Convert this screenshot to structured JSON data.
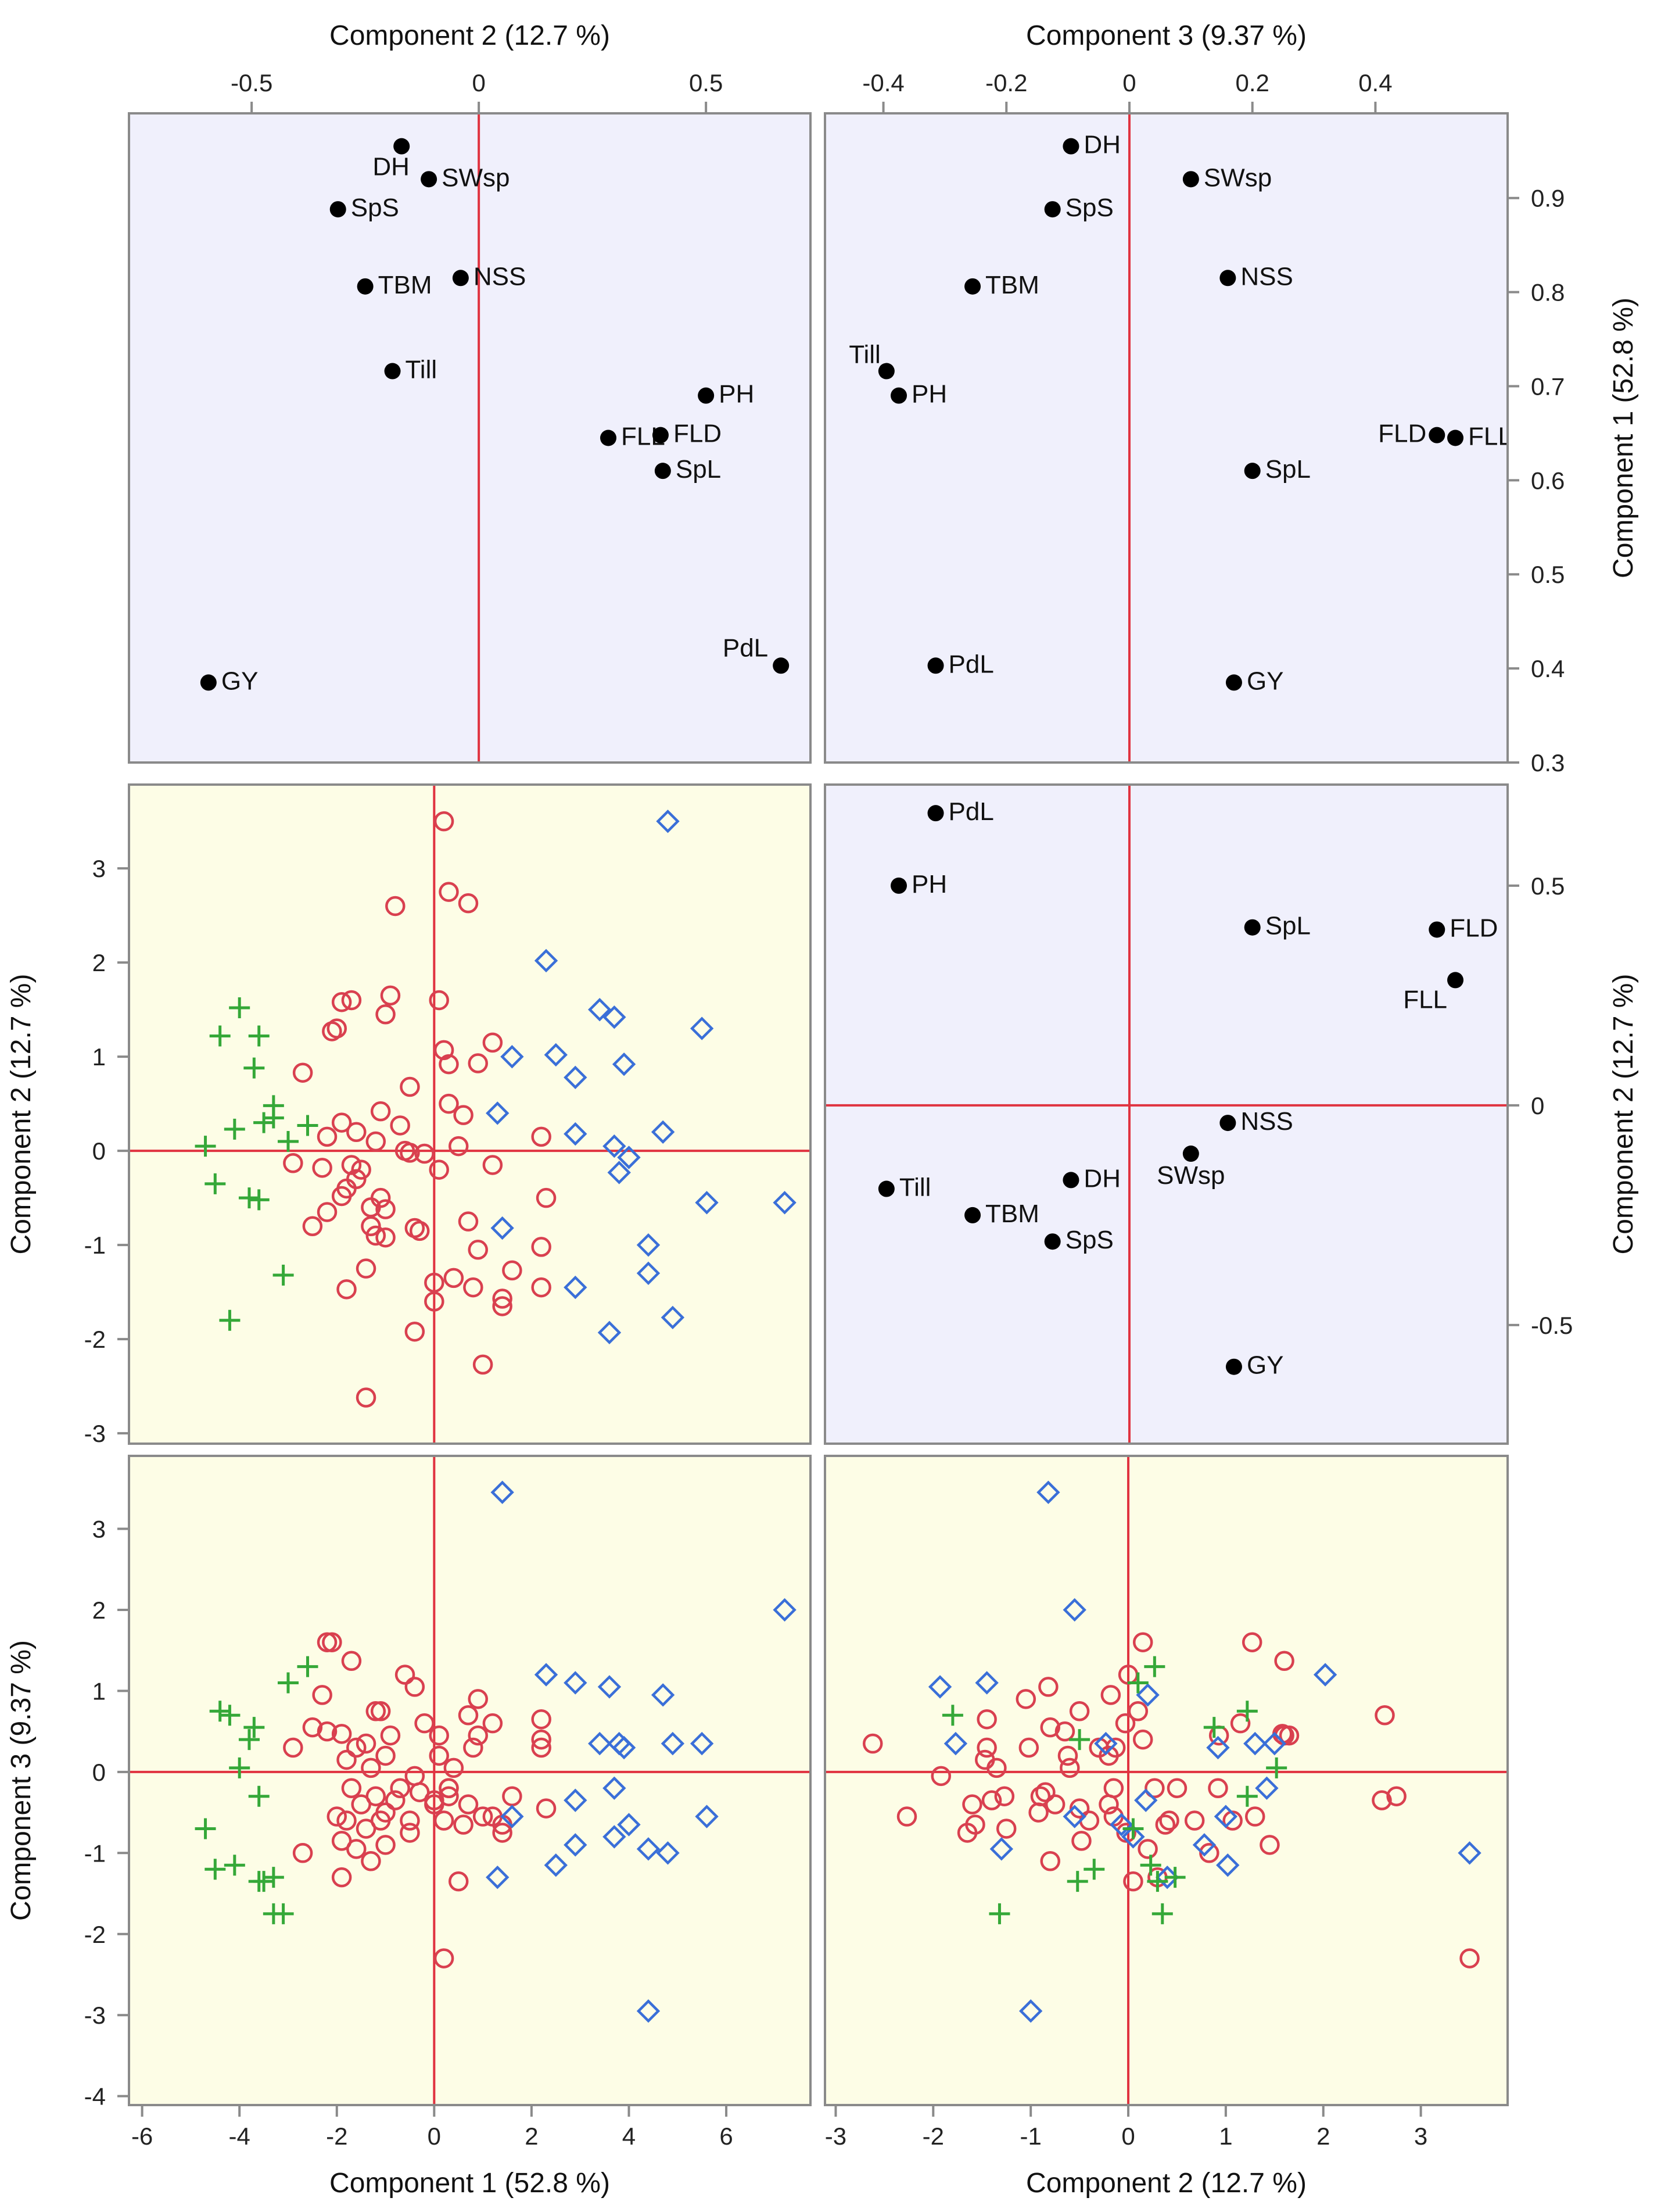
{
  "chart_data": {
    "type": "scatter-matrix",
    "title": "",
    "colors": {
      "loadings_bg": "#f0f0fc",
      "scores_bg": "#fdfde6",
      "ref_line": "#e03340",
      "group_circle": "#d9404f",
      "group_diamond": "#3a6fd8",
      "group_plus": "#35a838",
      "frame": "#8a8a8a"
    },
    "axes": {
      "comp1": {
        "label": "Component 1  (52.8 %)",
        "loading_range": [
          0.3,
          0.99
        ],
        "loading_ticks": [
          {
            "v": 0.3,
            "t": "0.3"
          },
          {
            "v": 0.4,
            "t": "0.4"
          },
          {
            "v": 0.5,
            "t": "0.5"
          },
          {
            "v": 0.6,
            "t": "0.6"
          },
          {
            "v": 0.7,
            "t": "0.7"
          },
          {
            "v": 0.8,
            "t": "0.8"
          },
          {
            "v": 0.9,
            "t": "0.9"
          }
        ],
        "score_range": [
          -6.27,
          7.73
        ],
        "score_ticks": [
          {
            "v": -6,
            "t": "-6"
          },
          {
            "v": -4,
            "t": "-4"
          },
          {
            "v": -2,
            "t": "-2"
          },
          {
            "v": 0,
            "t": "0"
          },
          {
            "v": 2,
            "t": "2"
          },
          {
            "v": 4,
            "t": "4"
          },
          {
            "v": 6,
            "t": "6"
          }
        ]
      },
      "comp2": {
        "label": "Component 2  (12.7 %)",
        "loading_range": [
          -0.77,
          0.73
        ],
        "loading_ticks": [
          {
            "v": -0.5,
            "t": "-0.5"
          },
          {
            "v": 0,
            "t": "0"
          },
          {
            "v": 0.5,
            "t": "0.5"
          }
        ],
        "score_range": [
          -3.11,
          3.89
        ],
        "score_ticks": [
          {
            "v": -3,
            "t": "-3"
          },
          {
            "v": -2,
            "t": "-2"
          },
          {
            "v": -1,
            "t": "-1"
          },
          {
            "v": 0,
            "t": "0"
          },
          {
            "v": 1,
            "t": "1"
          },
          {
            "v": 2,
            "t": "2"
          },
          {
            "v": 3,
            "t": "3"
          }
        ]
      },
      "comp3": {
        "label": "Component 3  (9.37 %)",
        "loading_range": [
          -0.495,
          0.615
        ],
        "loading_ticks": [
          {
            "v": -0.4,
            "t": "-0.4"
          },
          {
            "v": -0.2,
            "t": "-0.2"
          },
          {
            "v": 0,
            "t": "0"
          },
          {
            "v": 0.2,
            "t": "0.2"
          },
          {
            "v": 0.4,
            "t": "0.4"
          }
        ],
        "score_range": [
          -4.11,
          3.9
        ],
        "score_ticks": [
          {
            "v": -4,
            "t": "-4"
          },
          {
            "v": -3,
            "t": "-3"
          },
          {
            "v": -2,
            "t": "-2"
          },
          {
            "v": -1,
            "t": "-1"
          },
          {
            "v": 0,
            "t": "0"
          },
          {
            "v": 1,
            "t": "1"
          },
          {
            "v": 2,
            "t": "2"
          },
          {
            "v": 3,
            "t": "3"
          }
        ]
      }
    },
    "loadings": [
      {
        "var": "DH",
        "c1": 0.955,
        "c2": -0.17,
        "c3": -0.095
      },
      {
        "var": "SWsp",
        "c1": 0.92,
        "c2": -0.11,
        "c3": 0.1
      },
      {
        "var": "SpS",
        "c1": 0.888,
        "c2": -0.31,
        "c3": -0.125
      },
      {
        "var": "TBM",
        "c1": 0.806,
        "c2": -0.25,
        "c3": -0.255
      },
      {
        "var": "NSS",
        "c1": 0.815,
        "c2": -0.04,
        "c3": 0.16
      },
      {
        "var": "Till",
        "c1": 0.716,
        "c2": -0.19,
        "c3": -0.395
      },
      {
        "var": "PH",
        "c1": 0.69,
        "c2": 0.5,
        "c3": -0.375
      },
      {
        "var": "FLL",
        "c1": 0.645,
        "c2": 0.285,
        "c3": 0.53
      },
      {
        "var": "FLD",
        "c1": 0.648,
        "c2": 0.4,
        "c3": 0.5
      },
      {
        "var": "SpL",
        "c1": 0.61,
        "c2": 0.405,
        "c3": 0.2
      },
      {
        "var": "PdL",
        "c1": 0.403,
        "c2": 0.665,
        "c3": -0.315
      },
      {
        "var": "GY",
        "c1": 0.385,
        "c2": -0.595,
        "c3": 0.17
      }
    ],
    "scores": [
      {
        "g": "circle",
        "c1": 0.2,
        "c2": 3.5,
        "c3": -2.3
      },
      {
        "g": "circle",
        "c1": 0.3,
        "c2": 2.75,
        "c3": -0.3
      },
      {
        "g": "circle",
        "c1": 0.7,
        "c2": 2.63,
        "c3": 0.7
      },
      {
        "g": "circle",
        "c1": -0.8,
        "c2": 2.6,
        "c3": -0.35
      },
      {
        "g": "circle",
        "c1": -1.9,
        "c2": 1.58,
        "c3": 0.47
      },
      {
        "g": "circle",
        "c1": -1.7,
        "c2": 1.6,
        "c3": 1.37
      },
      {
        "g": "circle",
        "c1": -0.9,
        "c2": 1.65,
        "c3": 0.45
      },
      {
        "g": "circle",
        "c1": 0.1,
        "c2": 1.6,
        "c3": 0.45
      },
      {
        "g": "circle",
        "c1": -1.0,
        "c2": 1.45,
        "c3": -0.9
      },
      {
        "g": "circle",
        "c1": -2.0,
        "c2": 1.3,
        "c3": -0.55
      },
      {
        "g": "circle",
        "c1": -2.1,
        "c2": 1.27,
        "c3": 1.6
      },
      {
        "g": "circle",
        "c1": -2.7,
        "c2": 0.83,
        "c3": -1.0
      },
      {
        "g": "circle",
        "c1": 0.2,
        "c2": 1.07,
        "c3": -0.6
      },
      {
        "g": "circle",
        "c1": 1.2,
        "c2": 1.15,
        "c3": 0.6
      },
      {
        "g": "circle",
        "c1": 0.9,
        "c2": 0.93,
        "c3": 0.45
      },
      {
        "g": "circle",
        "c1": 0.3,
        "c2": 0.92,
        "c3": -0.2
      },
      {
        "g": "circle",
        "c1": -0.5,
        "c2": 0.68,
        "c3": -0.6
      },
      {
        "g": "circle",
        "c1": 0.3,
        "c2": 0.5,
        "c3": -0.2
      },
      {
        "g": "circle",
        "c1": -1.1,
        "c2": 0.42,
        "c3": -0.6
      },
      {
        "g": "circle",
        "c1": 0.6,
        "c2": 0.38,
        "c3": -0.65
      },
      {
        "g": "circle",
        "c1": -1.9,
        "c2": 0.3,
        "c3": -1.3
      },
      {
        "g": "circle",
        "c1": -0.7,
        "c2": 0.27,
        "c3": -0.2
      },
      {
        "g": "circle",
        "c1": -1.6,
        "c2": 0.2,
        "c3": -0.95
      },
      {
        "g": "circle",
        "c1": -2.2,
        "c2": 0.15,
        "c3": 1.6
      },
      {
        "g": "circle",
        "c1": -1.2,
        "c2": 0.1,
        "c3": 0.75
      },
      {
        "g": "circle",
        "c1": 2.2,
        "c2": 0.15,
        "c3": 0.4
      },
      {
        "g": "circle",
        "c1": -0.5,
        "c2": -0.02,
        "c3": -0.75
      },
      {
        "g": "circle",
        "c1": -0.2,
        "c2": -0.03,
        "c3": 0.6
      },
      {
        "g": "circle",
        "c1": -2.9,
        "c2": -0.13,
        "c3": 0.3
      },
      {
        "g": "circle",
        "c1": -1.7,
        "c2": -0.15,
        "c3": -0.2
      },
      {
        "g": "circle",
        "c1": -1.5,
        "c2": -0.2,
        "c3": -0.4
      },
      {
        "g": "circle",
        "c1": 1.2,
        "c2": -0.15,
        "c3": -0.55
      },
      {
        "g": "circle",
        "c1": -2.3,
        "c2": -0.18,
        "c3": 0.95
      },
      {
        "g": "circle",
        "c1": -1.6,
        "c2": -0.3,
        "c3": 0.3
      },
      {
        "g": "circle",
        "c1": -1.8,
        "c2": -0.4,
        "c3": -0.6
      },
      {
        "g": "circle",
        "c1": -1.9,
        "c2": -0.48,
        "c3": -0.85
      },
      {
        "g": "circle",
        "c1": -1.1,
        "c2": -0.5,
        "c3": 0.75
      },
      {
        "g": "circle",
        "c1": 2.3,
        "c2": -0.5,
        "c3": -0.45
      },
      {
        "g": "circle",
        "c1": -1.0,
        "c2": -0.62,
        "c3": 0.2
      },
      {
        "g": "circle",
        "c1": -2.2,
        "c2": -0.65,
        "c3": 0.5
      },
      {
        "g": "circle",
        "c1": -2.5,
        "c2": -0.8,
        "c3": 0.55
      },
      {
        "g": "circle",
        "c1": -1.3,
        "c2": -0.8,
        "c3": -1.1
      },
      {
        "g": "circle",
        "c1": 0.7,
        "c2": -0.75,
        "c3": -0.4
      },
      {
        "g": "circle",
        "c1": -0.4,
        "c2": -0.82,
        "c3": 1.05
      },
      {
        "g": "circle",
        "c1": -0.3,
        "c2": -0.85,
        "c3": -0.25
      },
      {
        "g": "circle",
        "c1": -1.2,
        "c2": -0.9,
        "c3": -0.3
      },
      {
        "g": "circle",
        "c1": -1.0,
        "c2": -0.92,
        "c3": -0.5
      },
      {
        "g": "circle",
        "c1": 2.2,
        "c2": -1.02,
        "c3": 0.3
      },
      {
        "g": "circle",
        "c1": 0.9,
        "c2": -1.05,
        "c3": 0.9
      },
      {
        "g": "circle",
        "c1": 1.6,
        "c2": -1.27,
        "c3": -0.3
      },
      {
        "g": "circle",
        "c1": -1.4,
        "c2": -1.25,
        "c3": -0.7
      },
      {
        "g": "circle",
        "c1": 0.4,
        "c2": -1.35,
        "c3": 0.05
      },
      {
        "g": "circle",
        "c1": 0.8,
        "c2": -1.45,
        "c3": 0.3
      },
      {
        "g": "circle",
        "c1": 2.2,
        "c2": -1.45,
        "c3": 0.65
      },
      {
        "g": "circle",
        "c1": 0,
        "c2": -1.4,
        "c3": -0.35
      },
      {
        "g": "circle",
        "c1": -1.8,
        "c2": -1.47,
        "c3": 0.15
      },
      {
        "g": "circle",
        "c1": 1.4,
        "c2": -1.57,
        "c3": -0.65
      },
      {
        "g": "circle",
        "c1": 1.4,
        "c2": -1.65,
        "c3": -0.75
      },
      {
        "g": "circle",
        "c1": 0,
        "c2": -1.6,
        "c3": -0.4
      },
      {
        "g": "circle",
        "c1": -0.4,
        "c2": -1.92,
        "c3": -0.05
      },
      {
        "g": "circle",
        "c1": 1.0,
        "c2": -2.27,
        "c3": -0.55
      },
      {
        "g": "circle",
        "c1": -1.4,
        "c2": -2.62,
        "c3": 0.35
      },
      {
        "g": "circle",
        "c1": -0.6,
        "c2": 0.0,
        "c3": 1.2
      },
      {
        "g": "circle",
        "c1": 0.5,
        "c2": 0.05,
        "c3": -1.35
      },
      {
        "g": "circle",
        "c1": -1.3,
        "c2": -0.6,
        "c3": 0.05
      },
      {
        "g": "circle",
        "c1": 0.1,
        "c2": -0.2,
        "c3": 0.2
      },
      {
        "g": "diamond",
        "c1": 4.8,
        "c2": 3.5,
        "c3": -1.0
      },
      {
        "g": "diamond",
        "c1": 2.3,
        "c2": 2.02,
        "c3": 1.2
      },
      {
        "g": "diamond",
        "c1": 3.4,
        "c2": 1.5,
        "c3": 0.35
      },
      {
        "g": "diamond",
        "c1": 3.7,
        "c2": 1.42,
        "c3": -0.2
      },
      {
        "g": "diamond",
        "c1": 5.5,
        "c2": 1.3,
        "c3": 0.35
      },
      {
        "g": "diamond",
        "c1": 1.6,
        "c2": 1.0,
        "c3": -0.55
      },
      {
        "g": "diamond",
        "c1": 2.5,
        "c2": 1.02,
        "c3": -1.15
      },
      {
        "g": "diamond",
        "c1": 3.9,
        "c2": 0.92,
        "c3": 0.3
      },
      {
        "g": "diamond",
        "c1": 2.9,
        "c2": 0.78,
        "c3": -0.9
      },
      {
        "g": "diamond",
        "c1": 1.3,
        "c2": 0.4,
        "c3": -1.3
      },
      {
        "g": "diamond",
        "c1": 2.9,
        "c2": 0.18,
        "c3": -0.35
      },
      {
        "g": "diamond",
        "c1": 4.7,
        "c2": 0.2,
        "c3": 0.95
      },
      {
        "g": "diamond",
        "c1": 4.0,
        "c2": -0.07,
        "c3": -0.65
      },
      {
        "g": "diamond",
        "c1": 3.8,
        "c2": -0.23,
        "c3": 0.35
      },
      {
        "g": "diamond",
        "c1": 5.6,
        "c2": -0.55,
        "c3": -0.55
      },
      {
        "g": "diamond",
        "c1": 7.2,
        "c2": -0.55,
        "c3": 2.0
      },
      {
        "g": "diamond",
        "c1": 1.4,
        "c2": -0.82,
        "c3": 3.45
      },
      {
        "g": "diamond",
        "c1": 2.9,
        "c2": -1.45,
        "c3": 1.1
      },
      {
        "g": "diamond",
        "c1": 4.4,
        "c2": -1.3,
        "c3": -0.95
      },
      {
        "g": "diamond",
        "c1": 3.6,
        "c2": -1.93,
        "c3": 1.05
      },
      {
        "g": "diamond",
        "c1": 4.9,
        "c2": -1.77,
        "c3": 0.35
      },
      {
        "g": "diamond",
        "c1": 3.7,
        "c2": 0.05,
        "c3": -0.8
      },
      {
        "g": "diamond",
        "c1": 4.4,
        "c2": -1.0,
        "c3": -2.95
      },
      {
        "g": "plus",
        "c1": -4.0,
        "c2": 1.52,
        "c3": 0.05
      },
      {
        "g": "plus",
        "c1": -4.4,
        "c2": 1.22,
        "c3": 0.75
      },
      {
        "g": "plus",
        "c1": -3.6,
        "c2": 1.22,
        "c3": -0.3
      },
      {
        "g": "plus",
        "c1": -3.7,
        "c2": 0.88,
        "c3": 0.55
      },
      {
        "g": "plus",
        "c1": -3.3,
        "c2": 0.48,
        "c3": -1.3
      },
      {
        "g": "plus",
        "c1": -3.3,
        "c2": 0.35,
        "c3": -1.75
      },
      {
        "g": "plus",
        "c1": -2.6,
        "c2": 0.27,
        "c3": 1.3
      },
      {
        "g": "plus",
        "c1": -4.1,
        "c2": 0.23,
        "c3": -1.15
      },
      {
        "g": "plus",
        "c1": -4.7,
        "c2": 0.05,
        "c3": -0.7
      },
      {
        "g": "plus",
        "c1": -4.5,
        "c2": -0.35,
        "c3": -1.2
      },
      {
        "g": "plus",
        "c1": -3.6,
        "c2": -0.52,
        "c3": -1.35
      },
      {
        "g": "plus",
        "c1": -3.8,
        "c2": -0.5,
        "c3": 0.4
      },
      {
        "g": "plus",
        "c1": -3.1,
        "c2": -1.32,
        "c3": -1.75
      },
      {
        "g": "plus",
        "c1": -4.2,
        "c2": -1.8,
        "c3": 0.7
      },
      {
        "g": "plus",
        "c1": -3.5,
        "c2": 0.3,
        "c3": -1.35
      },
      {
        "g": "plus",
        "c1": -3.0,
        "c2": 0.1,
        "c3": 1.1
      }
    ]
  }
}
